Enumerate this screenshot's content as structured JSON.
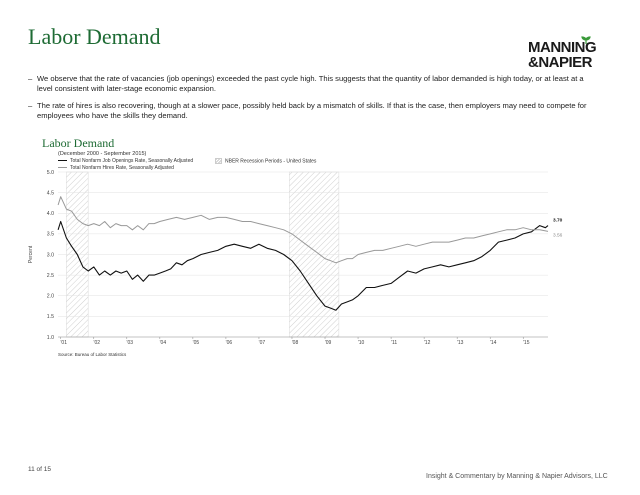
{
  "slide": {
    "title": "Labor Demand",
    "logo_line1": "MANNING",
    "logo_line2": "&NAPIER",
    "bullets": [
      "We observe that the rate of vacancies (job openings) exceeded the past cycle high. This suggests that the quantity of labor demanded is high today, or at least at a level consistent with later-stage economic expansion.",
      "The rate of hires is also recovering, though at a slower pace, possibly held back by a mismatch of skills. If that is the case, then employers may need to compete for employees who have the skills they demand."
    ],
    "bullet_marker": "–",
    "page_number": "11 of 15",
    "footer": "Insight & Commentary by Manning & Napier Advisors, LLC"
  },
  "chart_data": {
    "type": "line",
    "title": "Labor Demand",
    "subtitle": "(December 2000 - September 2015)",
    "ylabel": "Percent",
    "xlabel": "",
    "ylim": [
      1.0,
      5.0
    ],
    "y_ticks": [
      "1.0",
      "1.5",
      "2.0",
      "2.5",
      "3.0",
      "3.5",
      "4.0",
      "4.5",
      "5.0"
    ],
    "x_range": [
      2000.917,
      2015.75
    ],
    "x_ticks": [
      {
        "label": "'01",
        "x": 2001.0
      },
      {
        "label": "'02",
        "x": 2002.0
      },
      {
        "label": "'03",
        "x": 2003.0
      },
      {
        "label": "'04",
        "x": 2004.0
      },
      {
        "label": "'05",
        "x": 2005.0
      },
      {
        "label": "'06",
        "x": 2006.0
      },
      {
        "label": "'07",
        "x": 2007.0
      },
      {
        "label": "'08",
        "x": 2008.0
      },
      {
        "label": "'09",
        "x": 2009.0
      },
      {
        "label": "'10",
        "x": 2010.0
      },
      {
        "label": "'11",
        "x": 2011.0
      },
      {
        "label": "'12",
        "x": 2012.0
      },
      {
        "label": "'13",
        "x": 2013.0
      },
      {
        "label": "'14",
        "x": 2014.0
      },
      {
        "label": "'15",
        "x": 2015.0
      }
    ],
    "grid": true,
    "legend_position": "top-left",
    "recessions": [
      [
        2001.17,
        2001.83
      ],
      [
        2007.92,
        2009.42
      ]
    ],
    "recession_legend": "NBER Recession Periods - United States",
    "source": "Source: Bureau of Labor Statistics",
    "series": [
      {
        "name": "Total Nonfarm Job Openings Rate, Seasonally Adjusted",
        "color": "#111111",
        "end_label": "3.70",
        "x": [
          2000.92,
          2001.0,
          2001.17,
          2001.33,
          2001.5,
          2001.67,
          2001.83,
          2002.0,
          2002.17,
          2002.33,
          2002.5,
          2002.67,
          2002.83,
          2003.0,
          2003.17,
          2003.33,
          2003.5,
          2003.67,
          2003.83,
          2004.0,
          2004.17,
          2004.33,
          2004.5,
          2004.67,
          2004.83,
          2005.0,
          2005.25,
          2005.5,
          2005.75,
          2006.0,
          2006.25,
          2006.5,
          2006.75,
          2007.0,
          2007.25,
          2007.5,
          2007.75,
          2008.0,
          2008.25,
          2008.5,
          2008.75,
          2009.0,
          2009.17,
          2009.33,
          2009.5,
          2009.67,
          2009.83,
          2010.0,
          2010.25,
          2010.5,
          2010.75,
          2011.0,
          2011.25,
          2011.5,
          2011.75,
          2012.0,
          2012.25,
          2012.5,
          2012.75,
          2013.0,
          2013.25,
          2013.5,
          2013.75,
          2014.0,
          2014.25,
          2014.5,
          2014.75,
          2015.0,
          2015.25,
          2015.5,
          2015.67,
          2015.75
        ],
        "values": [
          3.6,
          3.8,
          3.4,
          3.2,
          3.0,
          2.7,
          2.6,
          2.7,
          2.5,
          2.6,
          2.5,
          2.6,
          2.55,
          2.6,
          2.4,
          2.5,
          2.35,
          2.5,
          2.5,
          2.55,
          2.6,
          2.65,
          2.8,
          2.75,
          2.85,
          2.9,
          3.0,
          3.05,
          3.1,
          3.2,
          3.25,
          3.2,
          3.15,
          3.25,
          3.15,
          3.1,
          3.0,
          2.85,
          2.6,
          2.3,
          2.0,
          1.75,
          1.7,
          1.65,
          1.8,
          1.85,
          1.9,
          2.0,
          2.2,
          2.2,
          2.25,
          2.3,
          2.45,
          2.6,
          2.55,
          2.65,
          2.7,
          2.75,
          2.7,
          2.75,
          2.8,
          2.85,
          2.95,
          3.1,
          3.3,
          3.35,
          3.4,
          3.5,
          3.55,
          3.7,
          3.65,
          3.7
        ]
      },
      {
        "name": "Total Nonfarm Hires Rate, Seasonally Adjusted",
        "color": "#999999",
        "end_label": "3.56",
        "x": [
          2000.92,
          2001.0,
          2001.17,
          2001.33,
          2001.5,
          2001.67,
          2001.83,
          2002.0,
          2002.17,
          2002.33,
          2002.5,
          2002.67,
          2002.83,
          2003.0,
          2003.17,
          2003.33,
          2003.5,
          2003.67,
          2003.83,
          2004.0,
          2004.25,
          2004.5,
          2004.75,
          2005.0,
          2005.25,
          2005.5,
          2005.75,
          2006.0,
          2006.25,
          2006.5,
          2006.75,
          2007.0,
          2007.25,
          2007.5,
          2007.75,
          2008.0,
          2008.25,
          2008.5,
          2008.75,
          2009.0,
          2009.17,
          2009.33,
          2009.5,
          2009.67,
          2009.83,
          2010.0,
          2010.25,
          2010.5,
          2010.75,
          2011.0,
          2011.25,
          2011.5,
          2011.75,
          2012.0,
          2012.25,
          2012.5,
          2012.75,
          2013.0,
          2013.25,
          2013.5,
          2013.75,
          2014.0,
          2014.25,
          2014.5,
          2014.75,
          2015.0,
          2015.25,
          2015.5,
          2015.75
        ],
        "values": [
          4.2,
          4.4,
          4.1,
          4.05,
          3.85,
          3.75,
          3.7,
          3.75,
          3.7,
          3.8,
          3.65,
          3.75,
          3.7,
          3.7,
          3.6,
          3.7,
          3.6,
          3.75,
          3.75,
          3.8,
          3.85,
          3.9,
          3.85,
          3.9,
          3.95,
          3.85,
          3.9,
          3.9,
          3.85,
          3.8,
          3.8,
          3.75,
          3.7,
          3.65,
          3.6,
          3.5,
          3.35,
          3.2,
          3.05,
          2.9,
          2.85,
          2.8,
          2.85,
          2.9,
          2.9,
          3.0,
          3.05,
          3.1,
          3.1,
          3.15,
          3.2,
          3.25,
          3.2,
          3.25,
          3.3,
          3.3,
          3.3,
          3.35,
          3.4,
          3.4,
          3.45,
          3.5,
          3.55,
          3.6,
          3.6,
          3.65,
          3.6,
          3.6,
          3.56
        ]
      }
    ]
  }
}
